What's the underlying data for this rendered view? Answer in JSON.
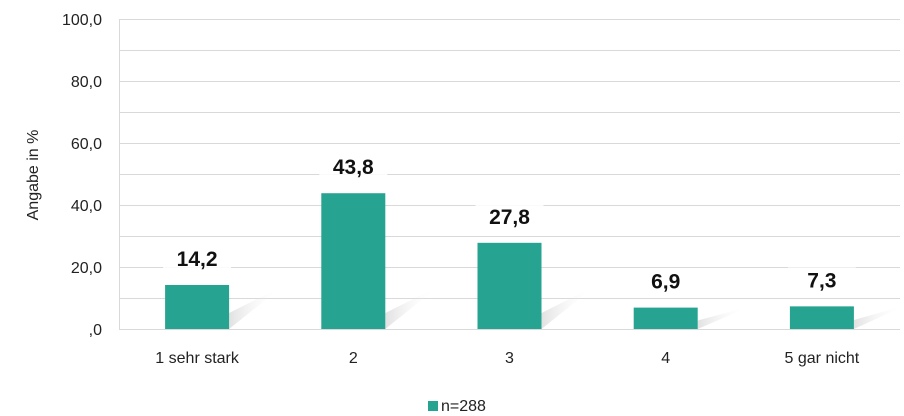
{
  "chart_data": {
    "type": "bar",
    "categories": [
      "1 sehr stark",
      "2",
      "3",
      "4",
      "5 gar nicht"
    ],
    "series": [
      {
        "name": "n=288",
        "values": [
          14.2,
          43.8,
          27.8,
          6.9,
          7.3
        ]
      }
    ],
    "data_labels": [
      "14,2",
      "43,8",
      "27,8",
      "6,9",
      "7,3"
    ],
    "ylabel": "Angabe in %",
    "ylim": [
      0,
      100
    ],
    "yticks": [
      ",0",
      "20,0",
      "40,0",
      "60,0",
      "80,0",
      "100,0"
    ],
    "grid": true,
    "legend_position": "bottom",
    "bar_color": "#26A391"
  }
}
